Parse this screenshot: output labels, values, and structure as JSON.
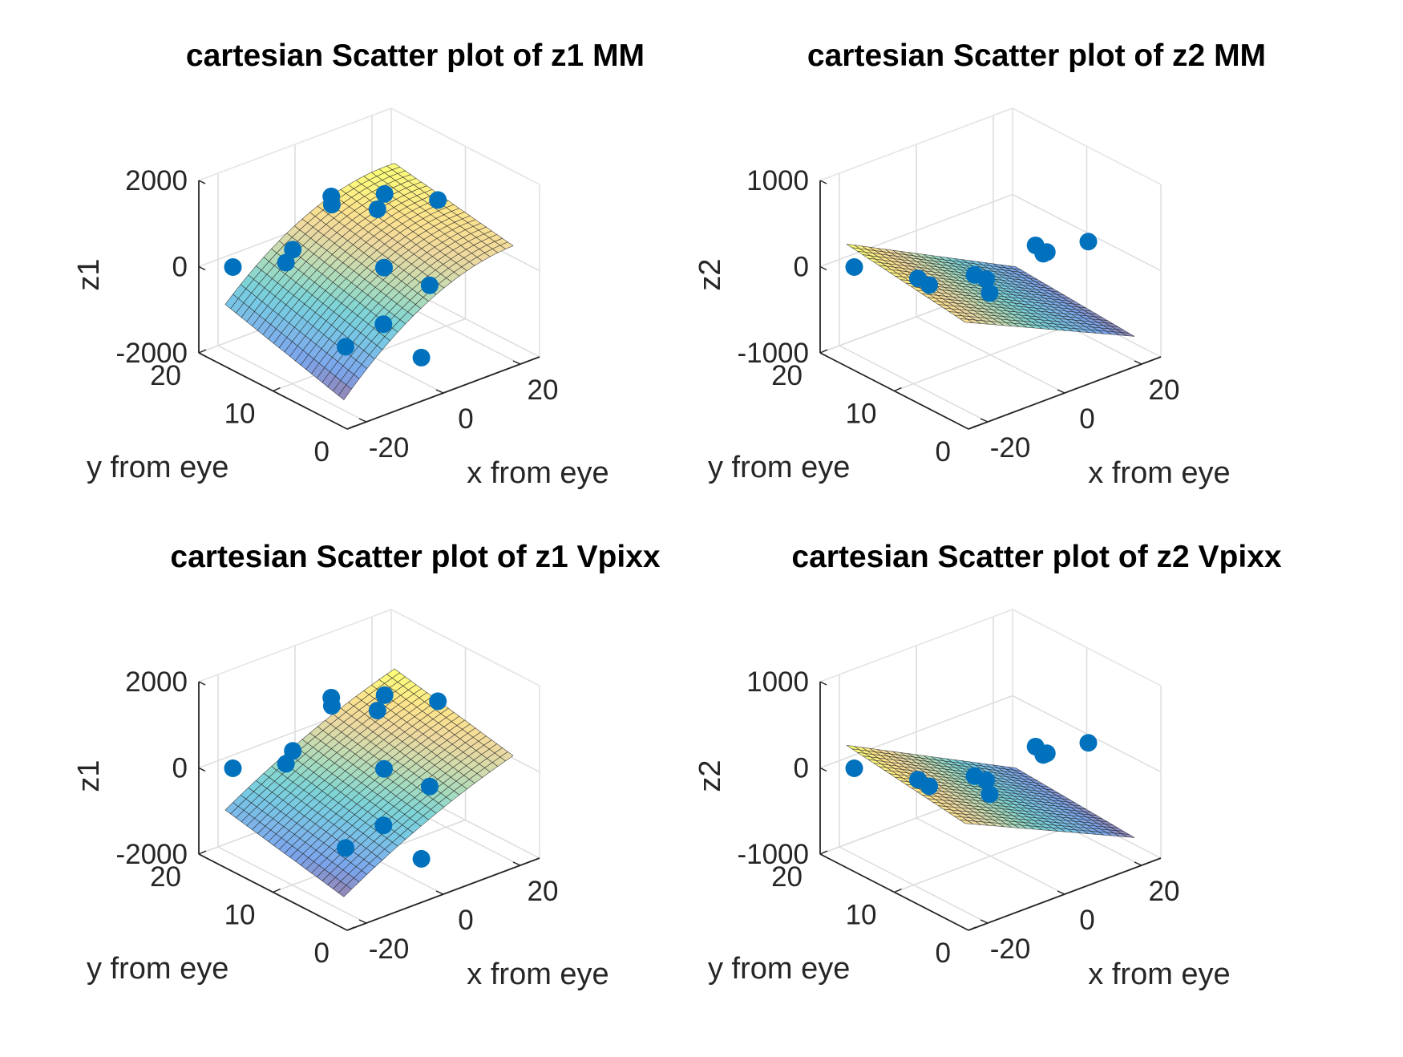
{
  "figure": {
    "layout": "2x2 subplots",
    "chart_data": [
      {
        "type": "scatter",
        "subtype": "3d scatter with fitted surface",
        "title": "cartesian Scatter plot of z1 MM",
        "xlabel": "x from eye",
        "ylabel": "y from eye",
        "zlabel": "z1",
        "xlim": [
          -25,
          25
        ],
        "ylim": [
          0,
          20
        ],
        "zlim": [
          -2000,
          2000
        ],
        "x_ticks": [
          "-20",
          "0",
          "20"
        ],
        "y_ticks": [
          "0",
          "10",
          "20"
        ],
        "z_ticks": [
          "-2000",
          "0",
          "2000"
        ],
        "grid": true,
        "marker_color": "#0072BD",
        "surface_colormap": "parula",
        "points": [
          {
            "x": -20,
            "y": 18,
            "z": 0
          },
          {
            "x": -16,
            "y": 12,
            "z": 800
          },
          {
            "x": -12,
            "y": 15,
            "z": 100
          },
          {
            "x": -10,
            "y": 8,
            "z": -1300
          },
          {
            "x": -6,
            "y": 12,
            "z": 1700
          },
          {
            "x": -2,
            "y": 14,
            "z": 1200
          },
          {
            "x": 0,
            "y": 8,
            "z": 200
          },
          {
            "x": -4,
            "y": 6,
            "z": -800
          },
          {
            "x": 2,
            "y": 4,
            "z": -1600
          },
          {
            "x": 4,
            "y": 10,
            "z": 1600
          },
          {
            "x": 6,
            "y": 12,
            "z": 1000
          },
          {
            "x": 8,
            "y": 6,
            "z": -300
          },
          {
            "x": 14,
            "y": 8,
            "z": 1300
          }
        ],
        "surface": {
          "x_range": [
            -22,
            22
          ],
          "y_range": [
            2,
            18
          ],
          "z_corners": {
            "x_min_y_min": -1600,
            "x_max_y_min": 500,
            "x_min_y_max": -800,
            "x_max_y_max": 1000
          },
          "curvature": 500
        }
      },
      {
        "type": "scatter",
        "subtype": "3d scatter with fitted surface",
        "title": "cartesian Scatter plot of z2 MM",
        "xlabel": "x from eye",
        "ylabel": "y from eye",
        "zlabel": "z2",
        "xlim": [
          -25,
          25
        ],
        "ylim": [
          0,
          20
        ],
        "zlim": [
          -1000,
          1000
        ],
        "x_ticks": [
          "-20",
          "0",
          "20"
        ],
        "y_ticks": [
          "0",
          "10",
          "20"
        ],
        "z_ticks": [
          "-1000",
          "0",
          "1000"
        ],
        "grid": true,
        "marker_color": "#0072BD",
        "surface_colormap": "parula",
        "points": [
          {
            "x": -20,
            "y": 18,
            "z": 0
          },
          {
            "x": -15,
            "y": 12,
            "z": 50
          },
          {
            "x": -14,
            "y": 11,
            "z": 0
          },
          {
            "x": -8,
            "y": 8,
            "z": 150
          },
          {
            "x": -6,
            "y": 7,
            "z": -50
          },
          {
            "x": -5,
            "y": 8,
            "z": 50
          },
          {
            "x": 4,
            "y": 6,
            "z": 380
          },
          {
            "x": 5,
            "y": 5,
            "z": 330
          },
          {
            "x": 6,
            "y": 6,
            "z": 250
          },
          {
            "x": 10,
            "y": 2,
            "z": 500
          }
        ],
        "surface": {
          "x_range": [
            -22,
            22
          ],
          "y_range": [
            2,
            18
          ],
          "z_corners": {
            "x_min_y_min": 100,
            "x_max_y_min": -800,
            "x_min_y_max": 300,
            "x_max_y_max": -700
          },
          "curvature": 0
        }
      },
      {
        "type": "scatter",
        "subtype": "3d scatter with fitted surface",
        "title": "cartesian Scatter plot of z1 Vpixx",
        "xlabel": "x from eye",
        "ylabel": "y from eye",
        "zlabel": "z1",
        "xlim": [
          -25,
          25
        ],
        "ylim": [
          0,
          20
        ],
        "zlim": [
          -2000,
          2000
        ],
        "x_ticks": [
          "-20",
          "0",
          "20"
        ],
        "y_ticks": [
          "0",
          "10",
          "20"
        ],
        "z_ticks": [
          "-2000",
          "0",
          "2000"
        ],
        "grid": true,
        "marker_color": "#0072BD",
        "surface_colormap": "parula",
        "points": [
          {
            "x": -20,
            "y": 18,
            "z": 0
          },
          {
            "x": -16,
            "y": 12,
            "z": 800
          },
          {
            "x": -12,
            "y": 15,
            "z": 100
          },
          {
            "x": -10,
            "y": 8,
            "z": -1300
          },
          {
            "x": -6,
            "y": 12,
            "z": 1700
          },
          {
            "x": -2,
            "y": 14,
            "z": 1200
          },
          {
            "x": 0,
            "y": 8,
            "z": 200
          },
          {
            "x": -4,
            "y": 6,
            "z": -800
          },
          {
            "x": 2,
            "y": 4,
            "z": -1600
          },
          {
            "x": 4,
            "y": 10,
            "z": 1600
          },
          {
            "x": 6,
            "y": 12,
            "z": 1000
          },
          {
            "x": 8,
            "y": 6,
            "z": -300
          },
          {
            "x": 14,
            "y": 8,
            "z": 1300
          }
        ],
        "surface": {
          "x_range": [
            -22,
            22
          ],
          "y_range": [
            2,
            18
          ],
          "z_corners": {
            "x_min_y_min": -1500,
            "x_max_y_min": 300,
            "x_min_y_max": -900,
            "x_max_y_max": 900
          },
          "curvature": 150
        }
      },
      {
        "type": "scatter",
        "subtype": "3d scatter with fitted surface",
        "title": "cartesian Scatter plot of z2 Vpixx",
        "xlabel": "x from eye",
        "ylabel": "y from eye",
        "zlabel": "z2",
        "xlim": [
          -25,
          25
        ],
        "ylim": [
          0,
          20
        ],
        "zlim": [
          -1000,
          1000
        ],
        "x_ticks": [
          "-20",
          "0",
          "20"
        ],
        "y_ticks": [
          "0",
          "10",
          "20"
        ],
        "z_ticks": [
          "-1000",
          "0",
          "1000"
        ],
        "grid": true,
        "marker_color": "#0072BD",
        "surface_colormap": "parula",
        "points": [
          {
            "x": -20,
            "y": 18,
            "z": 0
          },
          {
            "x": -15,
            "y": 12,
            "z": 50
          },
          {
            "x": -14,
            "y": 11,
            "z": 0
          },
          {
            "x": -8,
            "y": 8,
            "z": 150
          },
          {
            "x": -6,
            "y": 7,
            "z": -50
          },
          {
            "x": -5,
            "y": 8,
            "z": 50
          },
          {
            "x": 4,
            "y": 6,
            "z": 380
          },
          {
            "x": 5,
            "y": 5,
            "z": 330
          },
          {
            "x": 6,
            "y": 6,
            "z": 250
          },
          {
            "x": 10,
            "y": 2,
            "z": 500
          }
        ],
        "surface": {
          "x_range": [
            -22,
            22
          ],
          "y_range": [
            2,
            18
          ],
          "z_corners": {
            "x_min_y_min": 100,
            "x_max_y_min": -800,
            "x_min_y_max": 300,
            "x_max_y_max": -700
          },
          "curvature": 0
        }
      }
    ]
  }
}
